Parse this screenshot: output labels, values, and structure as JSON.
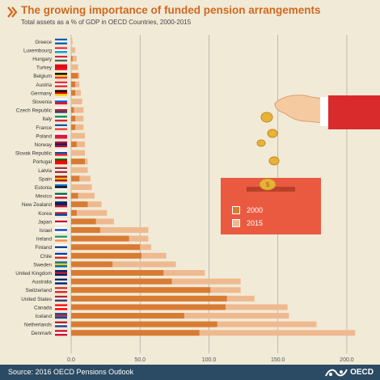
{
  "header": {
    "title": "The growing importance of funded pension arrangements",
    "subtitle": "Total assets as a % of GDP in OECD Countries, 2000-2015"
  },
  "footer": {
    "source": "Source: 2016 OECD Pensions Outlook",
    "logo_text": "OECD"
  },
  "colors": {
    "background": "#f1ead7",
    "series_2000": "#d87b33",
    "series_2015": "#efb98f",
    "title": "#d2691e",
    "footer": "#2b4a63",
    "box": "#ea5a40",
    "sleeve": "#d92b2b",
    "coin": "#e8b23a",
    "hand": "#f6caa0"
  },
  "icons": {
    "chevron": "double-chevron-icon",
    "illustration": "hand-dropping-coins-into-box"
  },
  "chart_data": {
    "type": "bar",
    "orientation": "horizontal",
    "categories": [
      "Greece",
      "Luxembourg",
      "Hungary",
      "Turkey",
      "Belgium",
      "Austria",
      "Germany",
      "Slovenia",
      "Czech Republic",
      "Italy",
      "France",
      "Poland",
      "Norway",
      "Slovak Republic",
      "Portugal",
      "Latvia",
      "Spain",
      "Estonia",
      "Mexico",
      "New Zealand",
      "Korea",
      "Japan",
      "Israel",
      "Ireland",
      "Finland",
      "Chile",
      "Sweden",
      "United Kingdom",
      "Australia",
      "Switzerland",
      "United States",
      "Canada",
      "Iceland",
      "Netherlands",
      "Denmark"
    ],
    "series": [
      {
        "name": "2000",
        "values": [
          0,
          0,
          1,
          0,
          5,
          3,
          3,
          0,
          2,
          3,
          3,
          0,
          4,
          0,
          10,
          0,
          6,
          0,
          5,
          12,
          4,
          18,
          21,
          42,
          50,
          51,
          30,
          67,
          73,
          101,
          113,
          112,
          82,
          106,
          93
        ]
      },
      {
        "name": "2015",
        "values": [
          1,
          3,
          4,
          5,
          6,
          6,
          7,
          8,
          9,
          9,
          9,
          10,
          10,
          10,
          12,
          12,
          14,
          15,
          17,
          22,
          26,
          31,
          56,
          56,
          58,
          69,
          76,
          97,
          123,
          123,
          133,
          157,
          158,
          178,
          206
        ]
      }
    ],
    "xlim": [
      0,
      210
    ],
    "xticks": [
      "0.0",
      "50.0",
      "100.0",
      "150.0",
      "200.0"
    ],
    "grid": true,
    "legend": "center-right"
  }
}
